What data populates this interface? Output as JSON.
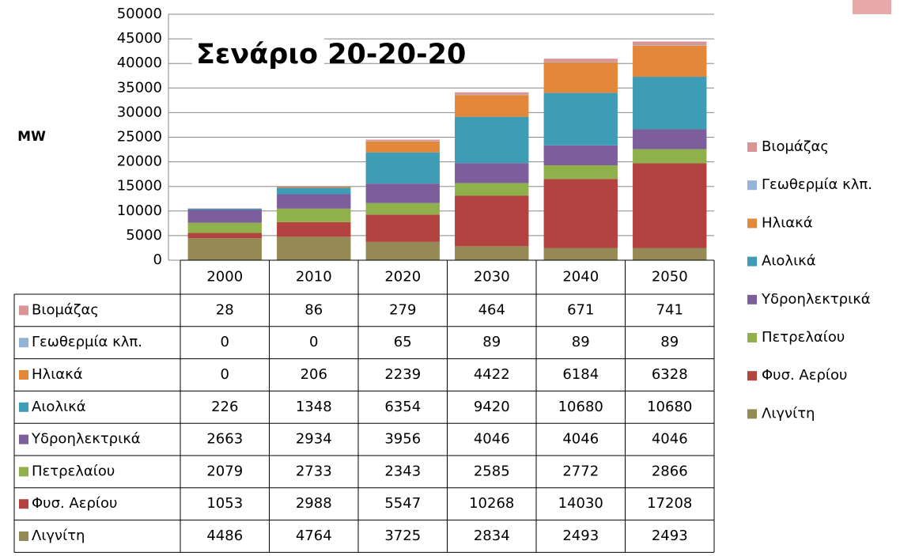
{
  "chart_data": {
    "type": "stacked_bar",
    "title": "Σενάριο 20-20-20",
    "y_label": "MW",
    "categories": [
      "2000",
      "2010",
      "2020",
      "2030",
      "2040",
      "2050"
    ],
    "series": [
      {
        "name": "Βιομάζας",
        "color": "#d99594",
        "values": [
          28,
          86,
          279,
          464,
          671,
          741
        ]
      },
      {
        "name": "Γεωθερμία κλπ.",
        "color": "#95b3d7",
        "values": [
          0,
          0,
          65,
          89,
          89,
          89
        ]
      },
      {
        "name": "Ηλιακά",
        "color": "#e3873a",
        "values": [
          0,
          206,
          2239,
          4422,
          6184,
          6328
        ]
      },
      {
        "name": "Αιολικά",
        "color": "#3f9cb5",
        "values": [
          226,
          1348,
          6354,
          9420,
          10680,
          10680
        ]
      },
      {
        "name": "Υδροηλεκτρικά",
        "color": "#7b5e9b",
        "values": [
          2663,
          2934,
          3956,
          4046,
          4046,
          4046
        ]
      },
      {
        "name": "Πετρελαίου",
        "color": "#8fb04a",
        "values": [
          2079,
          2733,
          2343,
          2585,
          2772,
          2866
        ]
      },
      {
        "name": "Φυσ. Αερίου",
        "color": "#b34340",
        "values": [
          1053,
          2988,
          5547,
          10268,
          14030,
          17208
        ]
      },
      {
        "name": "Λιγνίτη",
        "color": "#958a55",
        "values": [
          4486,
          4764,
          3725,
          2834,
          2493,
          2493
        ]
      }
    ],
    "ylim": [
      0,
      50000
    ],
    "yticks": [
      0,
      5000,
      10000,
      15000,
      20000,
      25000,
      30000,
      35000,
      40000,
      45000,
      50000
    ],
    "grid": true,
    "legend": "right"
  }
}
